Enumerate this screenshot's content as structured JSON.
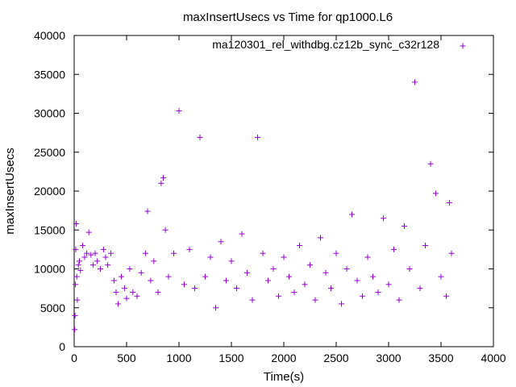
{
  "chart_data": {
    "type": "scatter",
    "title": "maxInsertUsecs vs Time for qp1000.L6",
    "xlabel": "Time(s)",
    "ylabel": "maxInsertUsecs",
    "xlim": [
      0,
      4000
    ],
    "ylim": [
      0,
      40000
    ],
    "xticks": [
      0,
      500,
      1000,
      1500,
      2000,
      2500,
      3000,
      3500,
      4000
    ],
    "yticks": [
      0,
      5000,
      10000,
      15000,
      20000,
      25000,
      30000,
      35000,
      40000
    ],
    "xtick_labels": [
      "0",
      "500",
      "1000",
      "1500",
      "2000",
      "2500",
      "3000",
      "3500",
      "4000"
    ],
    "ytick_labels": [
      "0",
      "5000",
      "10000",
      "15000",
      "20000",
      "25000",
      "30000",
      "35000",
      "40000"
    ],
    "grid": false,
    "legend_position": "top-right",
    "marker": "+",
    "series": [
      {
        "name": "ma120301_rel_withdbg.cz12b_sync_c32r128",
        "color": "#9400d3",
        "x": [
          5,
          8,
          12,
          15,
          20,
          25,
          30,
          40,
          50,
          60,
          80,
          100,
          120,
          140,
          160,
          180,
          200,
          220,
          250,
          280,
          300,
          320,
          350,
          380,
          400,
          420,
          450,
          480,
          500,
          530,
          560,
          600,
          640,
          680,
          700,
          730,
          760,
          800,
          830,
          850,
          870,
          900,
          950,
          1000,
          1050,
          1100,
          1150,
          1200,
          1250,
          1300,
          1350,
          1400,
          1450,
          1500,
          1550,
          1600,
          1650,
          1700,
          1750,
          1800,
          1850,
          1900,
          1950,
          2000,
          2050,
          2100,
          2150,
          2200,
          2250,
          2300,
          2350,
          2400,
          2450,
          2500,
          2550,
          2600,
          2650,
          2700,
          2750,
          2800,
          2850,
          2900,
          2950,
          3000,
          3050,
          3100,
          3150,
          3200,
          3250,
          3300,
          3350,
          3400,
          3450,
          3500,
          3550,
          3580,
          3600
        ],
        "y": [
          2200,
          4000,
          8000,
          12500,
          15800,
          9000,
          6000,
          10500,
          11000,
          9800,
          13000,
          11500,
          12000,
          14700,
          11800,
          10500,
          12000,
          11000,
          10000,
          12500,
          11500,
          10500,
          12000,
          8500,
          7000,
          5500,
          9000,
          7500,
          6200,
          10000,
          7000,
          6500,
          9500,
          12000,
          17400,
          8500,
          11000,
          7000,
          21000,
          21700,
          15000,
          9000,
          12000,
          30300,
          8000,
          12500,
          7500,
          26900,
          9000,
          11500,
          5000,
          13500,
          8500,
          11000,
          7500,
          14500,
          9500,
          6000,
          26900,
          12000,
          8500,
          10000,
          6500,
          11500,
          9000,
          7000,
          13000,
          8000,
          10500,
          6000,
          14000,
          9500,
          7500,
          12000,
          5500,
          10000,
          17000,
          8500,
          6500,
          11500,
          9000,
          7000,
          16500,
          8000,
          12500,
          6000,
          15500,
          10000,
          34000,
          7500,
          13000,
          23500,
          19700,
          9000,
          6500,
          18500,
          12000
        ]
      }
    ]
  }
}
